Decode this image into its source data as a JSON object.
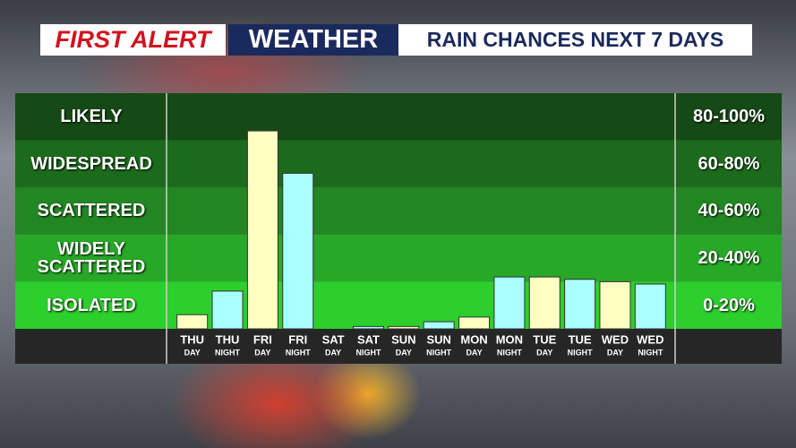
{
  "chart_data": {
    "type": "bar",
    "brand": "FIRST ALERT",
    "title": "WEATHER",
    "subtitle": "RAIN CHANCES NEXT 7 DAYS",
    "categories": [
      "THU",
      "THU",
      "FRI",
      "FRI",
      "SAT",
      "SAT",
      "SUN",
      "SUN",
      "MON",
      "MON",
      "TUE",
      "TUE",
      "WED",
      "WED"
    ],
    "periods": [
      "DAY",
      "NIGHT",
      "DAY",
      "NIGHT",
      "DAY",
      "NIGHT",
      "DAY",
      "NIGHT",
      "DAY",
      "NIGHT",
      "DAY",
      "NIGHT",
      "DAY",
      "NIGHT"
    ],
    "values": [
      6,
      16,
      84,
      66,
      0,
      1,
      1,
      3,
      5,
      22,
      22,
      21,
      20,
      19
    ],
    "bar_colors": [
      "#ffffc2",
      "#aaffff",
      "#ffffc2",
      "#aaffff",
      "#ffffc2",
      "#aaffff",
      "#ffffc2",
      "#aaffff",
      "#ffffc2",
      "#aaffff",
      "#ffffc2",
      "#aaffff",
      "#ffffc2",
      "#aaffff"
    ],
    "ylim": [
      0,
      100
    ],
    "bands": [
      {
        "from": 0,
        "to": 20,
        "name": "ISOLATED",
        "range": "0-20%",
        "color": "#2ccf2c"
      },
      {
        "from": 20,
        "to": 40,
        "name": "WIDELY SCATTERED",
        "range": "20-40%",
        "color": "#27a827"
      },
      {
        "from": 40,
        "to": 60,
        "name": "SCATTERED",
        "range": "40-60%",
        "color": "#228622"
      },
      {
        "from": 60,
        "to": 80,
        "name": "WIDESPREAD",
        "range": "60-80%",
        "color": "#1c6a1c"
      },
      {
        "from": 80,
        "to": 100,
        "name": "LIKELY",
        "range": "80-100%",
        "color": "#154915"
      }
    ]
  }
}
